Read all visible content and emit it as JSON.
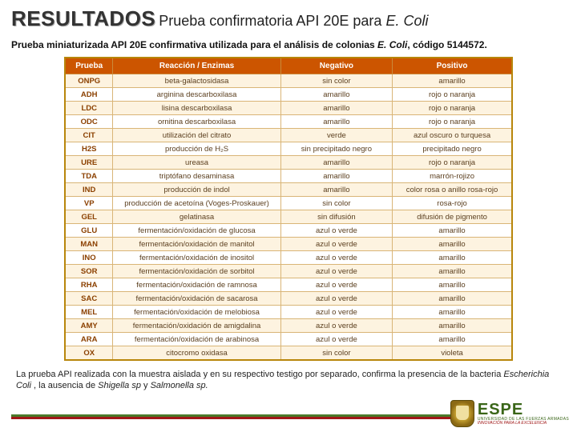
{
  "header": {
    "resultados": "RESULTADOS",
    "title_pre": "Prueba confirmatoria API 20E para ",
    "title_italic": "E. Coli"
  },
  "subtitle": {
    "pre": "Prueba miniaturizada API 20E confirmativa utilizada para el análisis de colonias ",
    "italic": "E. Coli",
    "post": ", código 5144572."
  },
  "table": {
    "header_bg": "#cc5500",
    "border_color": "#b8860b",
    "row_odd_bg": "#fdf3e0",
    "row_even_bg": "#ffffff",
    "columns": [
      "Prueba",
      "Reacción / Enzimas",
      "Negativo",
      "Positivo"
    ],
    "rows": [
      [
        "ONPG",
        "beta-galactosidasa",
        "sin color",
        "amarillo"
      ],
      [
        "ADH",
        "arginina descarboxilasa",
        "amarillo",
        "rojo o naranja"
      ],
      [
        "LDC",
        "lisina descarboxilasa",
        "amarillo",
        "rojo o naranja"
      ],
      [
        "ODC",
        "ornitina descarboxilasa",
        "amarillo",
        "rojo o naranja"
      ],
      [
        "CIT",
        "utilización del citrato",
        "verde",
        "azul oscuro o turquesa"
      ],
      [
        "H2S",
        "producción de H₂S",
        "sin precipitado negro",
        "precipitado negro"
      ],
      [
        "URE",
        "ureasa",
        "amarillo",
        "rojo o naranja"
      ],
      [
        "TDA",
        "triptófano desaminasa",
        "amarillo",
        "marrón-rojizo"
      ],
      [
        "IND",
        "producción de indol",
        "amarillo",
        "color rosa o anillo rosa-rojo"
      ],
      [
        "VP",
        "producción de acetoína (Voges-Proskauer)",
        "sin color",
        "rosa-rojo"
      ],
      [
        "GEL",
        "gelatinasa",
        "sin difusión",
        "difusión de pigmento"
      ],
      [
        "GLU",
        "fermentación/oxidación de glucosa",
        "azul o verde",
        "amarillo"
      ],
      [
        "MAN",
        "fermentación/oxidación de manitol",
        "azul o verde",
        "amarillo"
      ],
      [
        "INO",
        "fermentación/oxidación de inositol",
        "azul o verde",
        "amarillo"
      ],
      [
        "SOR",
        "fermentación/oxidación de sorbitol",
        "azul o verde",
        "amarillo"
      ],
      [
        "RHA",
        "fermentación/oxidación de ramnosa",
        "azul o verde",
        "amarillo"
      ],
      [
        "SAC",
        "fermentación/oxidación de sacarosa",
        "azul o verde",
        "amarillo"
      ],
      [
        "MEL",
        "fermentación/oxidación de melobiosa",
        "azul o verde",
        "amarillo"
      ],
      [
        "AMY",
        "fermentación/oxidación de amigdalina",
        "azul o verde",
        "amarillo"
      ],
      [
        "ARA",
        "fermentación/oxidación de arabinosa",
        "azul o verde",
        "amarillo"
      ],
      [
        "OX",
        "citocromo oxidasa",
        "sin color",
        "violeta"
      ]
    ]
  },
  "footnote": {
    "pre": "La prueba API realizada con la muestra aislada y en su respectivo testigo por separado, confirma la presencia de la bacteria ",
    "i1": "Escherichia Coli",
    "mid": " , la ausencia de ",
    "i2": "Shigella sp",
    "mid2": " y ",
    "i3": "Salmonella sp.",
    "post": ""
  },
  "logo": {
    "name": "ESPE",
    "line1": "UNIVERSIDAD DE LAS FUERZAS ARMADAS",
    "tag": "INNOVACIÓN PARA LA EXCELENCIA"
  }
}
